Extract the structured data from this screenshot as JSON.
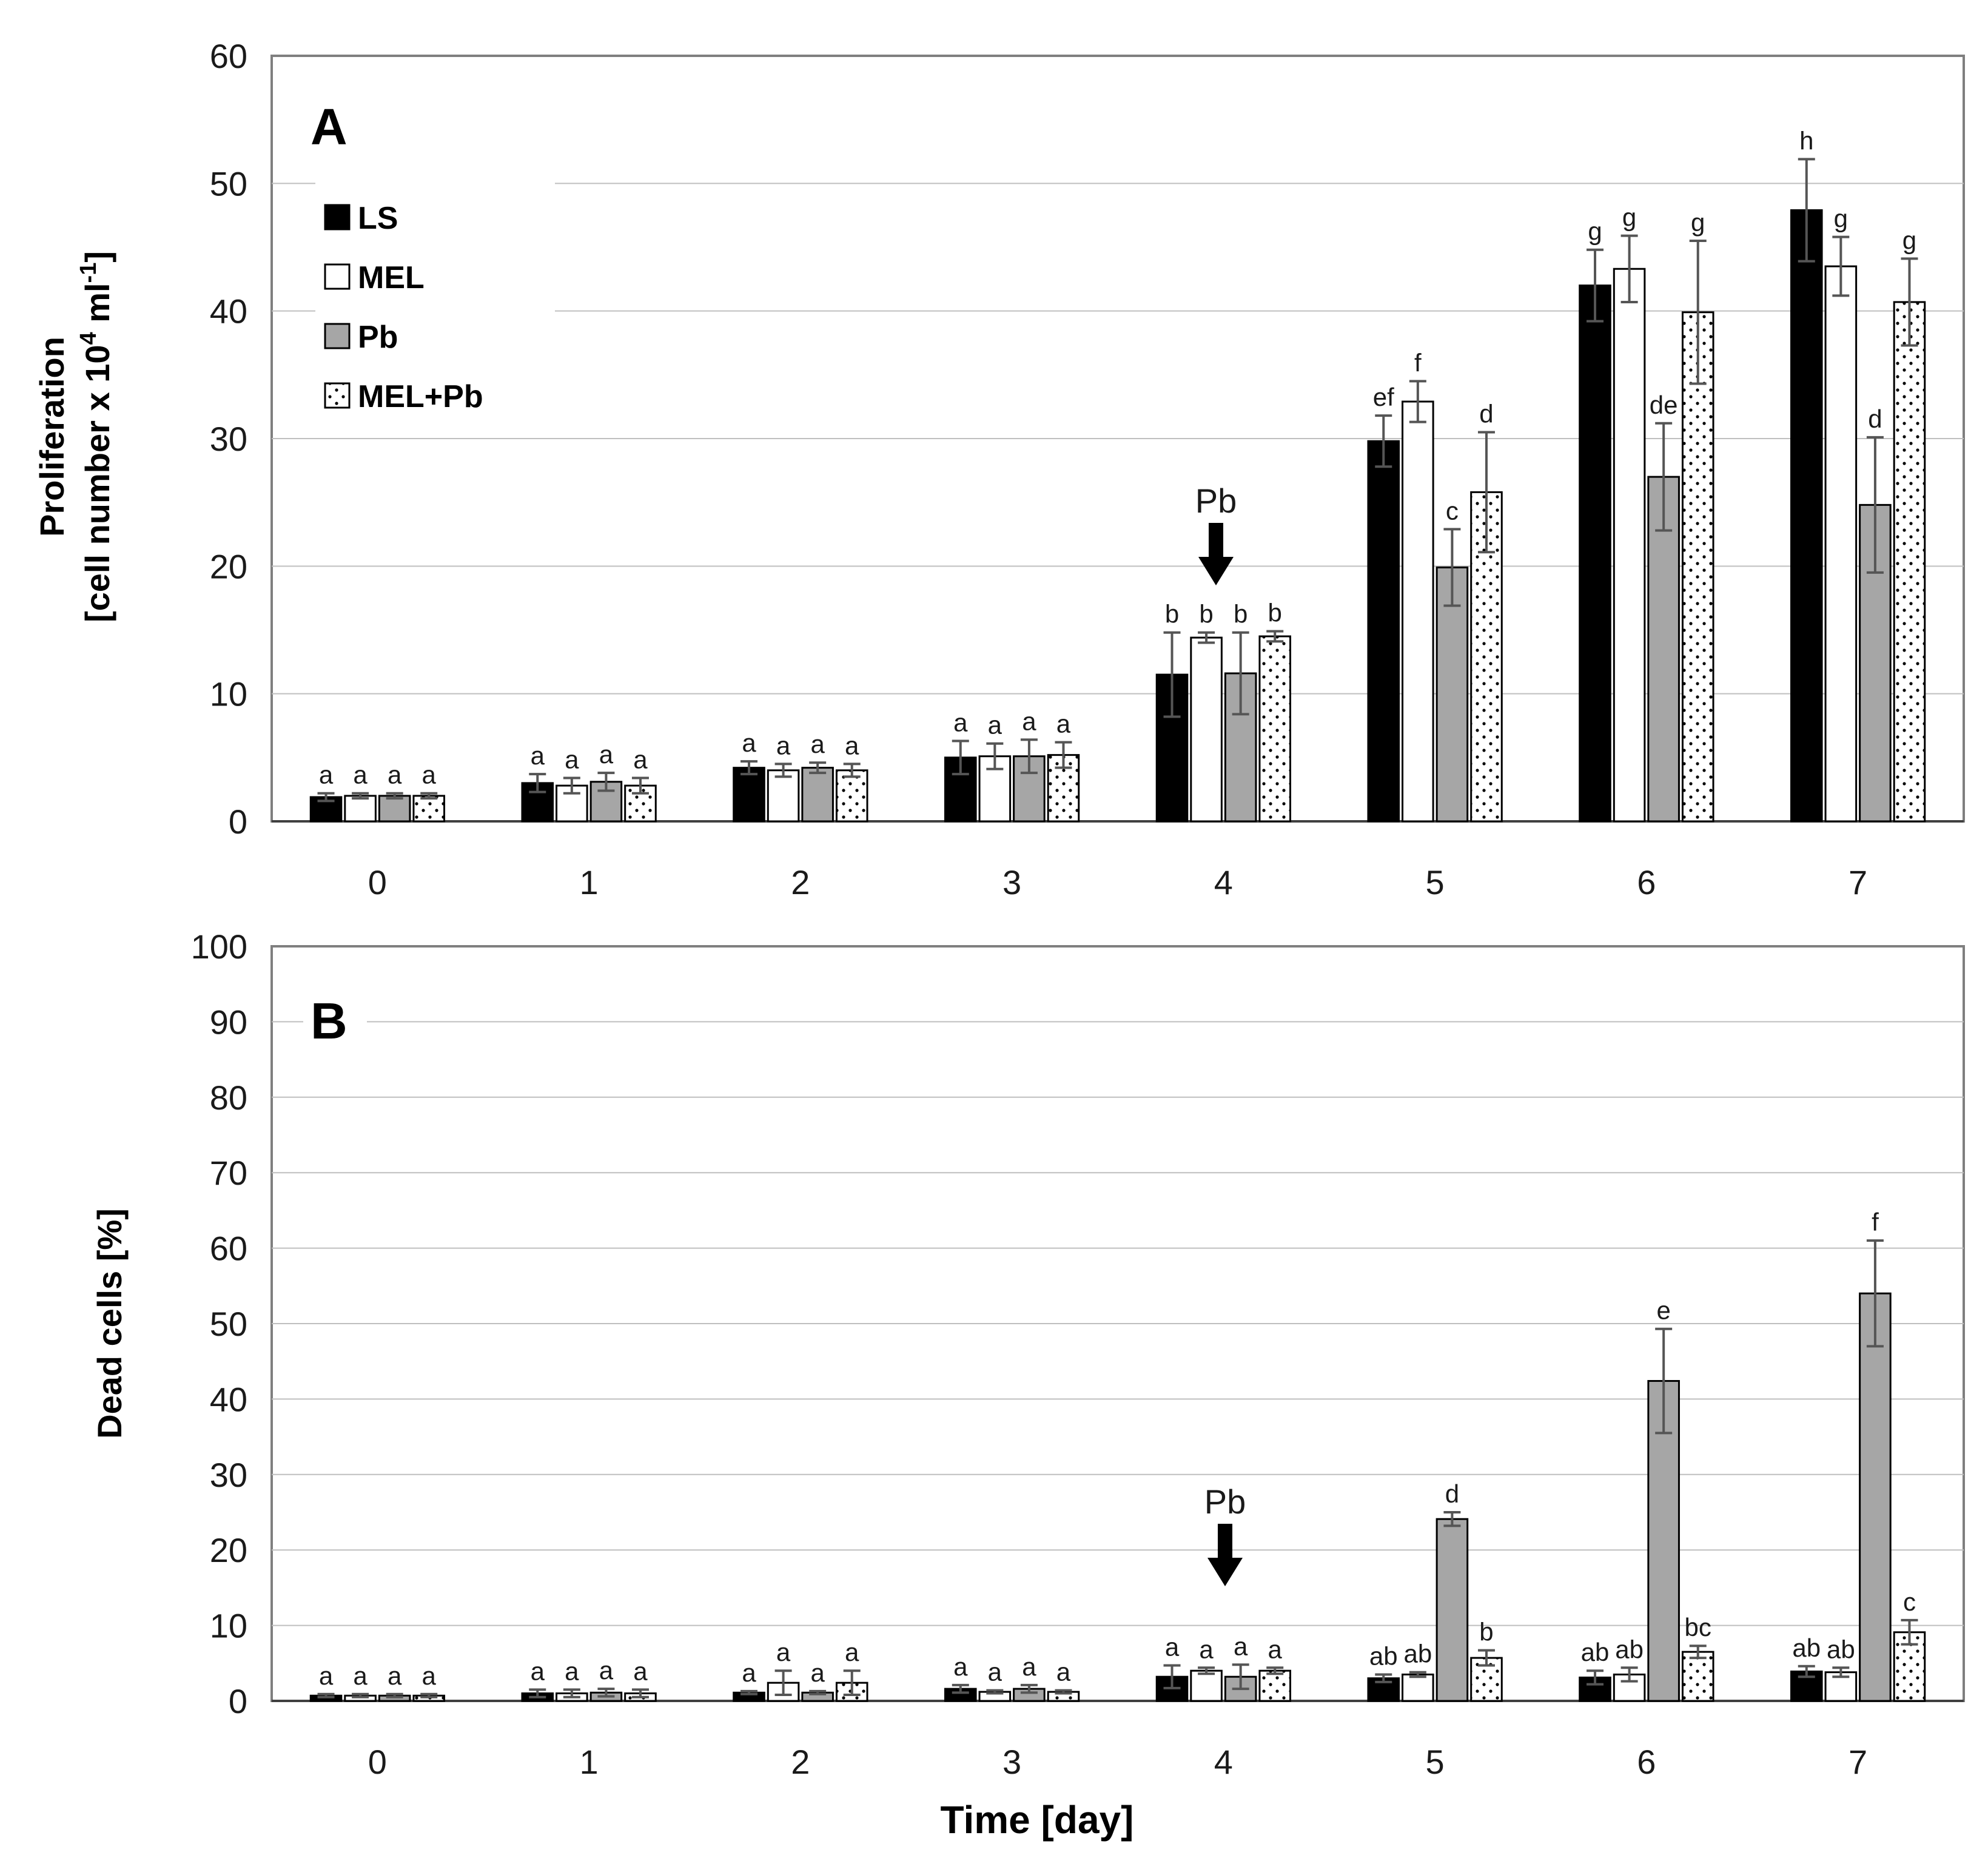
{
  "colors": {
    "LS": "#000000",
    "MEL": "#ffffff",
    "Pb": "#a6a6a6",
    "MEL+Pb": "#ffffff",
    "grid": "#bfbfbf",
    "axis": "#7f7f7f",
    "error": "#555555"
  },
  "legend": {
    "items": [
      {
        "label": "LS",
        "fill": "#000000",
        "pattern": "solid"
      },
      {
        "label": "MEL",
        "fill": "#ffffff",
        "pattern": "solid"
      },
      {
        "label": "Pb",
        "fill": "#a6a6a6",
        "pattern": "solid"
      },
      {
        "label": "MEL+Pb",
        "fill": "#ffffff",
        "pattern": "dots"
      }
    ]
  },
  "x_title": "Time [day]",
  "chart_data": [
    {
      "type": "bar",
      "panel": "A",
      "categories": [
        "0",
        "1",
        "2",
        "3",
        "4",
        "5",
        "6",
        "7"
      ],
      "ylabel_line1": "Proliferation",
      "ylabel_line2_prefix": "[cell number x 10",
      "ylabel_line2_sup": "4",
      "ylabel_line2_mid": " ml",
      "ylabel_line2_sup2": "-1",
      "ylabel_line2_suffix": "]",
      "ylim": [
        0,
        60
      ],
      "yticks": [
        "0",
        "10",
        "20",
        "30",
        "40",
        "50",
        "60"
      ],
      "grid": true,
      "legend_position": "top-left",
      "annotation": {
        "label": "Pb",
        "category": "4",
        "kind": "down-arrow"
      },
      "series": [
        {
          "name": "LS",
          "values": [
            1.9,
            3.0,
            4.2,
            5.0,
            11.5,
            29.8,
            42.0,
            47.9
          ],
          "errors": [
            0.3,
            0.7,
            0.5,
            1.3,
            3.3,
            2.0,
            2.8,
            4.0
          ],
          "labels": [
            "a",
            "a",
            "a",
            "a",
            "b",
            "ef",
            "g",
            "h"
          ]
        },
        {
          "name": "MEL",
          "values": [
            2.0,
            2.8,
            4.0,
            5.1,
            14.4,
            32.9,
            43.3,
            43.5
          ],
          "errors": [
            0.2,
            0.6,
            0.5,
            1.0,
            0.4,
            1.6,
            2.6,
            2.3
          ],
          "labels": [
            "a",
            "a",
            "a",
            "a",
            "b",
            "f",
            "g",
            "g"
          ]
        },
        {
          "name": "Pb",
          "values": [
            2.0,
            3.1,
            4.2,
            5.1,
            11.6,
            19.9,
            27.0,
            24.8
          ],
          "errors": [
            0.2,
            0.7,
            0.4,
            1.3,
            3.2,
            3.0,
            4.2,
            5.3
          ],
          "labels": [
            "a",
            "a",
            "a",
            "a",
            "b",
            "c",
            "de",
            "d"
          ]
        },
        {
          "name": "MEL+Pb",
          "values": [
            2.0,
            2.8,
            4.0,
            5.2,
            14.5,
            25.8,
            39.9,
            40.7
          ],
          "errors": [
            0.2,
            0.6,
            0.5,
            1.0,
            0.4,
            4.7,
            5.6,
            3.4
          ],
          "labels": [
            "a",
            "a",
            "a",
            "a",
            "b",
            "d",
            "g",
            "g"
          ]
        }
      ]
    },
    {
      "type": "bar",
      "panel": "B",
      "categories": [
        "0",
        "1",
        "2",
        "3",
        "4",
        "5",
        "6",
        "7"
      ],
      "ylabel": "Dead cells [%]",
      "ylim": [
        0,
        100
      ],
      "yticks": [
        "0",
        "10",
        "20",
        "30",
        "40",
        "50",
        "60",
        "70",
        "80",
        "90",
        "100"
      ],
      "grid": true,
      "annotation": {
        "label": "Pb",
        "category": "4",
        "kind": "down-arrow"
      },
      "series": [
        {
          "name": "LS",
          "values": [
            0.7,
            1.0,
            1.1,
            1.6,
            3.2,
            3.0,
            3.1,
            3.9
          ],
          "errors": [
            0.2,
            0.5,
            0.2,
            0.5,
            1.5,
            0.5,
            0.9,
            0.7
          ],
          "labels": [
            "a",
            "a",
            "a",
            "a",
            "a",
            "ab",
            "ab",
            "ab"
          ]
        },
        {
          "name": "MEL",
          "values": [
            0.7,
            1.0,
            2.4,
            1.2,
            4.0,
            3.5,
            3.5,
            3.8
          ],
          "errors": [
            0.2,
            0.5,
            1.6,
            0.2,
            0.4,
            0.3,
            0.9,
            0.6
          ],
          "labels": [
            "a",
            "a",
            "a",
            "a",
            "a",
            "ab",
            "ab",
            "ab"
          ]
        },
        {
          "name": "Pb",
          "values": [
            0.7,
            1.1,
            1.1,
            1.6,
            3.2,
            24.1,
            42.4,
            54.0
          ],
          "errors": [
            0.2,
            0.5,
            0.2,
            0.5,
            1.6,
            0.9,
            6.9,
            7.0
          ],
          "labels": [
            "a",
            "a",
            "a",
            "a",
            "a",
            "d",
            "e",
            "f"
          ]
        },
        {
          "name": "MEL+Pb",
          "values": [
            0.7,
            1.0,
            2.4,
            1.2,
            4.0,
            5.7,
            6.5,
            9.1
          ],
          "errors": [
            0.2,
            0.5,
            1.6,
            0.2,
            0.4,
            1.0,
            0.8,
            1.6
          ],
          "labels": [
            "a",
            "a",
            "a",
            "a",
            "a",
            "b",
            "bc",
            "c"
          ]
        }
      ]
    }
  ]
}
